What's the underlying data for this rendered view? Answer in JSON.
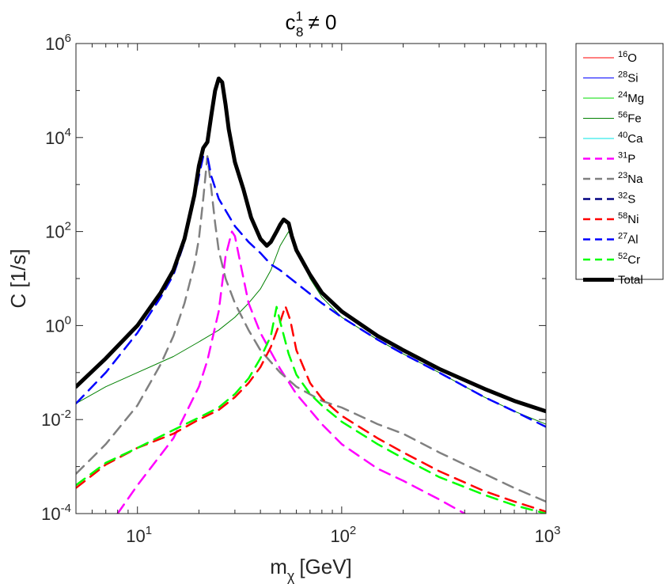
{
  "chart_data": {
    "type": "line",
    "title_parts": {
      "base": "c",
      "sup": "1",
      "sub": "8",
      "rest": "≠ 0"
    },
    "xlabel_parts": {
      "base": "m",
      "sub": "χ",
      "rest": "[GeV]"
    },
    "ylabel": "C [1/s]",
    "xscale": "log",
    "yscale": "log",
    "xlim": [
      5,
      1000
    ],
    "ylim": [
      0.0001,
      1000000
    ],
    "x_ticks": [
      {
        "base": "10",
        "exp": "1",
        "value": 10
      },
      {
        "base": "10",
        "exp": "2",
        "value": 100
      },
      {
        "base": "10",
        "exp": "3",
        "value": 1000
      }
    ],
    "y_ticks": [
      {
        "base": "10",
        "exp": "-4",
        "value": 0.0001
      },
      {
        "base": "10",
        "exp": "-2",
        "value": 0.01
      },
      {
        "base": "10",
        "exp": "0",
        "value": 1
      },
      {
        "base": "10",
        "exp": "2",
        "value": 100
      },
      {
        "base": "10",
        "exp": "4",
        "value": 10000
      },
      {
        "base": "10",
        "exp": "6",
        "value": 1000000
      }
    ],
    "legend_position": "outside-right-top",
    "series": [
      {
        "name": "O",
        "mass": "16",
        "color": "#ff0000",
        "style": "solid",
        "width": 1,
        "points": []
      },
      {
        "name": "Si",
        "mass": "28",
        "color": "#0000ff",
        "style": "solid",
        "width": 1,
        "points": []
      },
      {
        "name": "Mg",
        "mass": "24",
        "color": "#00dd00",
        "style": "solid",
        "width": 1,
        "points": []
      },
      {
        "name": "Fe",
        "mass": "56",
        "color": "#008000",
        "style": "solid",
        "width": 1,
        "points": [
          [
            5,
            0.022
          ],
          [
            7,
            0.05
          ],
          [
            10,
            0.1
          ],
          [
            15,
            0.22
          ],
          [
            20,
            0.45
          ],
          [
            25,
            0.8
          ],
          [
            30,
            1.5
          ],
          [
            35,
            3
          ],
          [
            40,
            6
          ],
          [
            45,
            15
          ],
          [
            50,
            50
          ],
          [
            55,
            100
          ],
          [
            60,
            45
          ],
          [
            70,
            10
          ],
          [
            80,
            4
          ],
          [
            100,
            1.5
          ],
          [
            150,
            0.5
          ],
          [
            200,
            0.25
          ],
          [
            300,
            0.1
          ],
          [
            500,
            0.03
          ],
          [
            700,
            0.015
          ],
          [
            1000,
            0.008
          ]
        ]
      },
      {
        "name": "Ca",
        "mass": "40",
        "color": "#00e5e5",
        "style": "solid",
        "width": 1,
        "points": []
      },
      {
        "name": "P",
        "mass": "31",
        "color": "#ff00ff",
        "style": "dashed",
        "width": 2.5,
        "points": [
          [
            8,
            0.0001
          ],
          [
            10,
            0.0004
          ],
          [
            15,
            0.004
          ],
          [
            20,
            0.05
          ],
          [
            22,
            0.18
          ],
          [
            25,
            2
          ],
          [
            27,
            30
          ],
          [
            29,
            100
          ],
          [
            30,
            80
          ],
          [
            32,
            20
          ],
          [
            35,
            3
          ],
          [
            40,
            0.7
          ],
          [
            50,
            0.12
          ],
          [
            60,
            0.035
          ],
          [
            80,
            0.008
          ],
          [
            100,
            0.003
          ],
          [
            150,
            0.0009
          ],
          [
            200,
            0.0005
          ],
          [
            300,
            0.0002
          ],
          [
            400,
            0.0001
          ]
        ]
      },
      {
        "name": "Na",
        "mass": "23",
        "color": "#808080",
        "style": "dashed",
        "width": 2.5,
        "points": [
          [
            5,
            0.0007
          ],
          [
            7,
            0.003
          ],
          [
            10,
            0.02
          ],
          [
            13,
            0.15
          ],
          [
            15,
            0.6
          ],
          [
            17,
            3
          ],
          [
            19,
            20
          ],
          [
            20,
            70
          ],
          [
            21,
            500
          ],
          [
            22,
            4000
          ],
          [
            23,
            800
          ],
          [
            24,
            150
          ],
          [
            25,
            40
          ],
          [
            27,
            10
          ],
          [
            30,
            3
          ],
          [
            35,
            0.8
          ],
          [
            40,
            0.3
          ],
          [
            50,
            0.1
          ],
          [
            60,
            0.05
          ],
          [
            80,
            0.025
          ],
          [
            100,
            0.018
          ],
          [
            150,
            0.008
          ],
          [
            200,
            0.005
          ],
          [
            300,
            0.002
          ],
          [
            500,
            0.0007
          ],
          [
            700,
            0.00035
          ],
          [
            1000,
            0.00018
          ]
        ]
      },
      {
        "name": "S",
        "mass": "32",
        "color": "#000080",
        "style": "dashed",
        "width": 2.5,
        "points": []
      },
      {
        "name": "Ni",
        "mass": "58",
        "color": "#ff0000",
        "style": "dashed",
        "width": 2.5,
        "points": [
          [
            5,
            0.00035
          ],
          [
            7,
            0.0011
          ],
          [
            10,
            0.0025
          ],
          [
            15,
            0.005
          ],
          [
            20,
            0.01
          ],
          [
            25,
            0.016
          ],
          [
            30,
            0.03
          ],
          [
            35,
            0.06
          ],
          [
            40,
            0.13
          ],
          [
            45,
            0.35
          ],
          [
            50,
            1.2
          ],
          [
            53,
            2.6
          ],
          [
            56,
            1.3
          ],
          [
            60,
            0.3
          ],
          [
            70,
            0.06
          ],
          [
            80,
            0.028
          ],
          [
            100,
            0.012
          ],
          [
            150,
            0.004
          ],
          [
            200,
            0.002
          ],
          [
            300,
            0.0008
          ],
          [
            500,
            0.0003
          ],
          [
            700,
            0.00018
          ],
          [
            1000,
            0.00011
          ]
        ]
      },
      {
        "name": "Al",
        "mass": "27",
        "color": "#0000ff",
        "style": "dashed",
        "width": 2.5,
        "points": [
          [
            5,
            0.022
          ],
          [
            7,
            0.1
          ],
          [
            10,
            0.7
          ],
          [
            13,
            4
          ],
          [
            15,
            12
          ],
          [
            17,
            60
          ],
          [
            19,
            500
          ],
          [
            20,
            1500
          ],
          [
            21,
            4000
          ],
          [
            22,
            4000
          ],
          [
            23,
            1500
          ],
          [
            25,
            500
          ],
          [
            30,
            130
          ],
          [
            35,
            60
          ],
          [
            40,
            35
          ],
          [
            45,
            20
          ],
          [
            50,
            15
          ],
          [
            60,
            8
          ],
          [
            80,
            3
          ],
          [
            100,
            1.5
          ],
          [
            150,
            0.5
          ],
          [
            200,
            0.25
          ],
          [
            300,
            0.1
          ],
          [
            500,
            0.03
          ],
          [
            700,
            0.015
          ],
          [
            1000,
            0.007
          ]
        ]
      },
      {
        "name": "Cr",
        "mass": "52",
        "color": "#00ff00",
        "style": "dashed",
        "width": 2.5,
        "points": [
          [
            5,
            0.0004
          ],
          [
            7,
            0.0012
          ],
          [
            10,
            0.0025
          ],
          [
            15,
            0.006
          ],
          [
            20,
            0.011
          ],
          [
            25,
            0.018
          ],
          [
            30,
            0.035
          ],
          [
            35,
            0.075
          ],
          [
            40,
            0.2
          ],
          [
            45,
            0.6
          ],
          [
            48,
            2.5
          ],
          [
            50,
            1.2
          ],
          [
            55,
            0.25
          ],
          [
            60,
            0.09
          ],
          [
            70,
            0.035
          ],
          [
            80,
            0.02
          ],
          [
            100,
            0.009
          ],
          [
            150,
            0.003
          ],
          [
            200,
            0.0015
          ],
          [
            300,
            0.0006
          ],
          [
            500,
            0.00025
          ],
          [
            700,
            0.00015
          ],
          [
            1000,
            0.0001
          ]
        ]
      },
      {
        "name": "Total",
        "mass": "",
        "color": "#000000",
        "style": "solid",
        "width": 5,
        "points": [
          [
            5,
            0.05
          ],
          [
            7,
            0.2
          ],
          [
            10,
            1
          ],
          [
            13,
            5
          ],
          [
            15,
            15
          ],
          [
            17,
            70
          ],
          [
            19,
            600
          ],
          [
            20,
            2500
          ],
          [
            21,
            6000
          ],
          [
            22,
            8000
          ],
          [
            23,
            30000
          ],
          [
            24,
            100000
          ],
          [
            25,
            180000
          ],
          [
            26,
            150000
          ],
          [
            27,
            50000
          ],
          [
            28,
            15000
          ],
          [
            30,
            3000
          ],
          [
            33,
            800
          ],
          [
            36,
            200
          ],
          [
            40,
            70
          ],
          [
            43,
            50
          ],
          [
            45,
            60
          ],
          [
            48,
            100
          ],
          [
            50,
            140
          ],
          [
            52,
            180
          ],
          [
            55,
            150
          ],
          [
            57,
            80
          ],
          [
            60,
            40
          ],
          [
            70,
            12
          ],
          [
            80,
            5
          ],
          [
            100,
            2
          ],
          [
            150,
            0.6
          ],
          [
            200,
            0.3
          ],
          [
            300,
            0.12
          ],
          [
            500,
            0.045
          ],
          [
            700,
            0.025
          ],
          [
            1000,
            0.015
          ]
        ]
      }
    ]
  }
}
